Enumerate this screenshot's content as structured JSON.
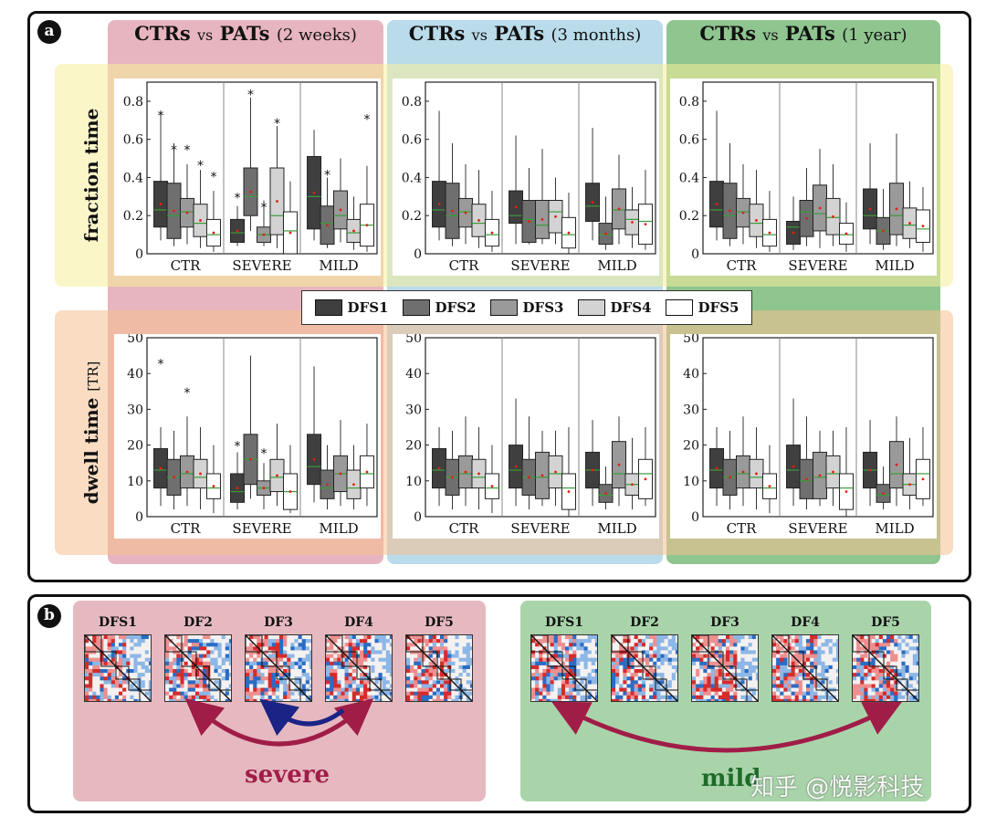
{
  "panel_a": {
    "badge": "a"
  },
  "panel_b": {
    "badge": "b"
  },
  "columns": [
    {
      "id": "2w",
      "title_a": "CTRs",
      "vs": "vs",
      "title_b": "PATs",
      "period": "(2 weeks)",
      "color": "#e7b5bf"
    },
    {
      "id": "3m",
      "title_a": "CTRs",
      "vs": "vs",
      "title_b": "PATs",
      "period": "(3 months)",
      "color": "#b9dbea"
    },
    {
      "id": "1y",
      "title_a": "CTRs",
      "vs": "vs",
      "title_b": "PATs",
      "period": "(1 year)",
      "color": "#8fc58f"
    }
  ],
  "rows": [
    {
      "id": "fraction",
      "label": "fraction time",
      "unit": "",
      "color": "#f7ef9a"
    },
    {
      "id": "dwell",
      "label": "dwell time",
      "unit": "[TR]",
      "color": "#f6c08f"
    }
  ],
  "legend": {
    "items": [
      {
        "label": "DFS1",
        "color": "#3f3f3f"
      },
      {
        "label": "DFS2",
        "color": "#6f6f6f"
      },
      {
        "label": "DFS3",
        "color": "#9a9a9a"
      },
      {
        "label": "DFS4",
        "color": "#d3d3d3"
      },
      {
        "label": "DFS5",
        "color": "#ffffff"
      }
    ]
  },
  "chart_data": [
    {
      "type": "box",
      "row": "fraction",
      "column": "2w",
      "categories": [
        "CTR",
        "SEVERE",
        "MILD"
      ],
      "yticks": [
        "0",
        "0.2",
        "0.4",
        "0.6",
        "0.8"
      ],
      "ylim": [
        0,
        0.9
      ],
      "boxes": [
        [
          [
            0.07,
            0.14,
            0.23,
            0.38,
            0.75
          ],
          [
            0.04,
            0.08,
            0.2,
            0.37,
            0.58
          ],
          [
            0.05,
            0.14,
            0.22,
            0.29,
            0.47
          ],
          [
            0.03,
            0.09,
            0.16,
            0.26,
            0.44
          ],
          [
            0.01,
            0.04,
            0.1,
            0.18,
            0.33
          ]
        ],
        [
          [
            0.04,
            0.06,
            0.11,
            0.18,
            0.25
          ],
          [
            0.12,
            0.2,
            0.3,
            0.45,
            0.82
          ],
          [
            0.04,
            0.06,
            0.1,
            0.14,
            0.28
          ],
          [
            0.03,
            0.1,
            0.2,
            0.45,
            0.67
          ],
          [
            0.0,
            0.0,
            0.12,
            0.22,
            0.38
          ]
        ],
        [
          [
            0.07,
            0.13,
            0.3,
            0.51,
            0.65
          ],
          [
            0.03,
            0.05,
            0.16,
            0.25,
            0.4
          ],
          [
            0.06,
            0.13,
            0.2,
            0.33,
            0.5
          ],
          [
            0.02,
            0.06,
            0.11,
            0.18,
            0.3
          ],
          [
            0.01,
            0.04,
            0.15,
            0.26,
            0.46
          ]
        ]
      ],
      "stars": [
        [
          [
            0.73
          ],
          [
            0.55
          ],
          [
            0.55
          ],
          [
            0.47
          ],
          [
            0.41
          ]
        ],
        [
          [
            0.3
          ],
          [
            0.84
          ],
          [
            0.25
          ],
          [
            0.69
          ],
          []
        ],
        [
          [],
          [
            0.42
          ],
          [],
          [],
          [
            0.71
          ]
        ]
      ]
    },
    {
      "type": "box",
      "row": "fraction",
      "column": "3m",
      "categories": [
        "CTR",
        "SEVERE",
        "MILD"
      ],
      "yticks": [
        "0",
        "0.2",
        "0.4",
        "0.6",
        "0.8"
      ],
      "ylim": [
        0,
        0.9
      ],
      "boxes": [
        [
          [
            0.07,
            0.14,
            0.23,
            0.38,
            0.75
          ],
          [
            0.04,
            0.08,
            0.2,
            0.37,
            0.58
          ],
          [
            0.05,
            0.14,
            0.22,
            0.29,
            0.47
          ],
          [
            0.03,
            0.09,
            0.16,
            0.26,
            0.44
          ],
          [
            0.01,
            0.04,
            0.1,
            0.18,
            0.33
          ]
        ],
        [
          [
            0.05,
            0.16,
            0.2,
            0.33,
            0.62
          ],
          [
            0.05,
            0.06,
            0.18,
            0.28,
            0.45
          ],
          [
            0.05,
            0.08,
            0.15,
            0.28,
            0.55
          ],
          [
            0.05,
            0.11,
            0.22,
            0.28,
            0.4
          ],
          [
            0.0,
            0.03,
            0.1,
            0.19,
            0.32
          ]
        ],
        [
          [
            0.07,
            0.17,
            0.25,
            0.37,
            0.66
          ],
          [
            0.02,
            0.05,
            0.1,
            0.16,
            0.3
          ],
          [
            0.05,
            0.13,
            0.23,
            0.34,
            0.52
          ],
          [
            0.03,
            0.1,
            0.18,
            0.23,
            0.35
          ],
          [
            0.02,
            0.05,
            0.17,
            0.26,
            0.44
          ]
        ]
      ],
      "stars": []
    },
    {
      "type": "box",
      "row": "fraction",
      "column": "1y",
      "categories": [
        "CTR",
        "SEVERE",
        "MILD"
      ],
      "yticks": [
        "0",
        "0.2",
        "0.4",
        "0.6",
        "0.8"
      ],
      "ylim": [
        0,
        0.9
      ],
      "boxes": [
        [
          [
            0.07,
            0.14,
            0.23,
            0.38,
            0.75
          ],
          [
            0.04,
            0.08,
            0.2,
            0.37,
            0.58
          ],
          [
            0.05,
            0.14,
            0.22,
            0.29,
            0.47
          ],
          [
            0.03,
            0.09,
            0.16,
            0.26,
            0.44
          ],
          [
            0.01,
            0.04,
            0.1,
            0.18,
            0.33
          ]
        ],
        [
          [
            0.02,
            0.05,
            0.14,
            0.17,
            0.3
          ],
          [
            0.04,
            0.09,
            0.22,
            0.28,
            0.45
          ],
          [
            0.03,
            0.12,
            0.21,
            0.36,
            0.55
          ],
          [
            0.04,
            0.1,
            0.19,
            0.29,
            0.47
          ],
          [
            0.01,
            0.05,
            0.1,
            0.16,
            0.27
          ]
        ],
        [
          [
            0.05,
            0.13,
            0.2,
            0.34,
            0.58
          ],
          [
            0.02,
            0.05,
            0.12,
            0.19,
            0.34
          ],
          [
            0.04,
            0.1,
            0.2,
            0.37,
            0.63
          ],
          [
            0.03,
            0.08,
            0.15,
            0.24,
            0.38
          ],
          [
            0.01,
            0.06,
            0.13,
            0.23,
            0.35
          ]
        ]
      ],
      "stars": []
    },
    {
      "type": "box",
      "row": "dwell",
      "column": "2w",
      "categories": [
        "CTR",
        "SEVERE",
        "MILD"
      ],
      "yticks": [
        "0",
        "10",
        "20",
        "30",
        "40",
        "50"
      ],
      "ylim": [
        0,
        50
      ],
      "boxes": [
        [
          [
            3,
            8,
            13,
            19,
            25
          ],
          [
            2,
            6,
            11,
            16,
            24
          ],
          [
            3,
            8,
            12,
            17,
            28
          ],
          [
            2,
            8,
            11,
            16,
            25
          ],
          [
            1,
            5,
            8,
            12,
            20
          ]
        ],
        [
          [
            2,
            4,
            7,
            12,
            18
          ],
          [
            5,
            9,
            16,
            23,
            45
          ],
          [
            2,
            6,
            8,
            10,
            15
          ],
          [
            3,
            7,
            11,
            16,
            26
          ],
          [
            1,
            2,
            7,
            12,
            20
          ]
        ],
        [
          [
            4,
            9,
            14,
            23,
            42
          ],
          [
            2,
            5,
            8,
            13,
            20
          ],
          [
            3,
            7,
            12,
            17,
            27
          ],
          [
            2,
            5,
            8,
            13,
            20
          ],
          [
            3,
            8,
            12,
            17,
            26
          ]
        ]
      ],
      "stars": [
        [
          [
            43
          ],
          [],
          [
            35
          ],
          [],
          []
        ],
        [
          [
            20
          ],
          [],
          [
            18
          ],
          [],
          []
        ],
        [
          [],
          [],
          [],
          [],
          []
        ]
      ]
    },
    {
      "type": "box",
      "row": "dwell",
      "column": "3m",
      "categories": [
        "CTR",
        "SEVERE",
        "MILD"
      ],
      "yticks": [
        "0",
        "10",
        "20",
        "30",
        "40",
        "50"
      ],
      "ylim": [
        0,
        50
      ],
      "boxes": [
        [
          [
            3,
            8,
            13,
            19,
            25
          ],
          [
            2,
            6,
            11,
            16,
            24
          ],
          [
            3,
            8,
            12,
            17,
            28
          ],
          [
            2,
            8,
            11,
            16,
            25
          ],
          [
            1,
            5,
            8,
            12,
            20
          ]
        ],
        [
          [
            3,
            8,
            13,
            20,
            33
          ],
          [
            2,
            6,
            11,
            16,
            28
          ],
          [
            3,
            5,
            11,
            18,
            24
          ],
          [
            3,
            8,
            12,
            17,
            24
          ],
          [
            0,
            2,
            8,
            12,
            25
          ]
        ],
        [
          [
            3,
            8,
            13,
            18,
            27
          ],
          [
            2,
            4,
            6,
            9,
            14
          ],
          [
            3,
            8,
            12,
            21,
            28
          ],
          [
            2,
            6,
            9,
            12,
            22
          ],
          [
            3,
            5,
            12,
            16,
            25
          ]
        ]
      ],
      "stars": []
    },
    {
      "type": "box",
      "row": "dwell",
      "column": "1y",
      "categories": [
        "CTR",
        "SEVERE",
        "MILD"
      ],
      "yticks": [
        "0",
        "10",
        "20",
        "30",
        "40",
        "50"
      ],
      "ylim": [
        0,
        50
      ],
      "boxes": [
        [
          [
            3,
            8,
            13,
            19,
            25
          ],
          [
            2,
            6,
            11,
            16,
            24
          ],
          [
            3,
            8,
            12,
            17,
            28
          ],
          [
            2,
            8,
            11,
            16,
            25
          ],
          [
            1,
            5,
            8,
            12,
            20
          ]
        ],
        [
          [
            3,
            8,
            13,
            20,
            33
          ],
          [
            2,
            5,
            10,
            16,
            28
          ],
          [
            3,
            5,
            11,
            18,
            24
          ],
          [
            3,
            8,
            12,
            17,
            24
          ],
          [
            0,
            2,
            8,
            12,
            25
          ]
        ],
        [
          [
            3,
            8,
            13,
            18,
            27
          ],
          [
            2,
            4,
            6,
            9,
            14
          ],
          [
            3,
            8,
            12,
            21,
            28
          ],
          [
            2,
            6,
            9,
            12,
            22
          ],
          [
            3,
            5,
            12,
            16,
            25
          ]
        ]
      ],
      "stars": []
    }
  ],
  "severe_group": {
    "label": "severe",
    "color": "#e6b9c0",
    "matrices": [
      "DFS1",
      "DF2",
      "DF3",
      "DF4",
      "DF5"
    ],
    "arrow_outer_color": "#a01d48",
    "arrow_inner_color": "#1b2386"
  },
  "mild_group": {
    "label": "mild",
    "color": "#a9d4aa",
    "matrices": [
      "DFS1",
      "DF2",
      "DF3",
      "DF4",
      "DF5"
    ],
    "arrow_color": "#a01d48"
  },
  "watermark": "知乎 @悦影科技"
}
